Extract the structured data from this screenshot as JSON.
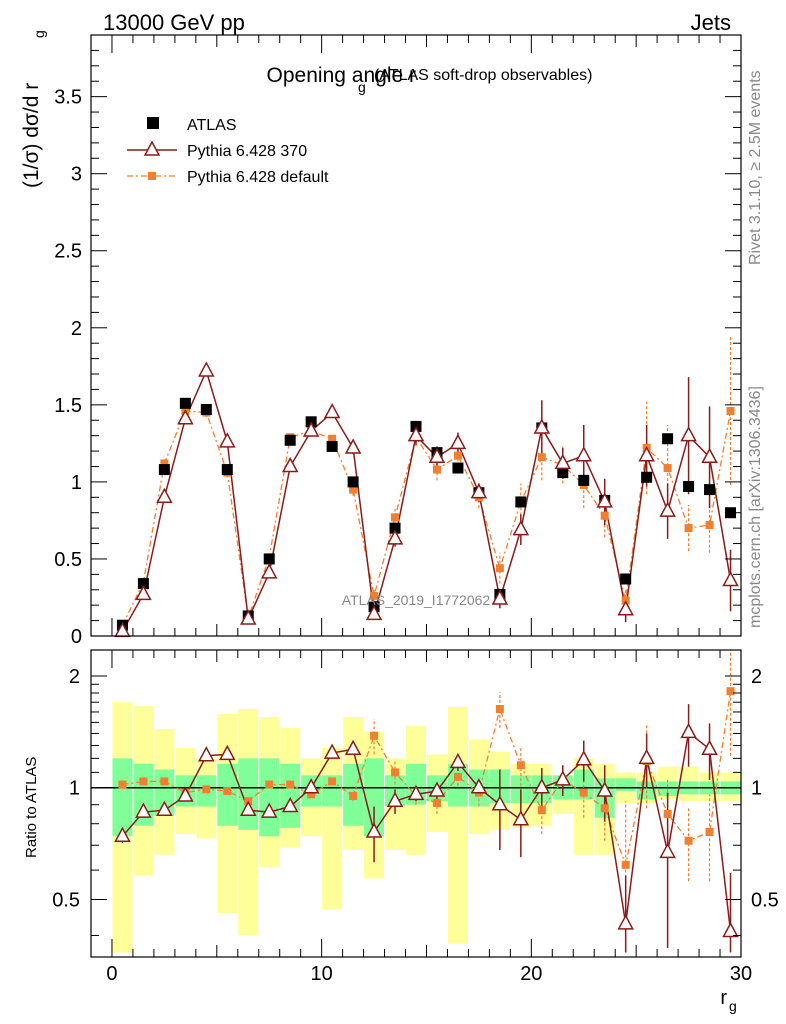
{
  "header": {
    "left": "13000 GeV pp",
    "right": "Jets",
    "side_rivet": "Rivet 3.1.10, ≥ 2.5M events",
    "side_mcplots": "mcplots.cern.ch [arXiv:1306.3436]",
    "watermark": "ATLAS_2019_I1772062"
  },
  "colors": {
    "data": "#000000",
    "mc1": "#8b1a1a",
    "mc2": "#f08030",
    "band_inner": "#80ff99",
    "band_outer": "#ffff99"
  },
  "chart_data": [
    {
      "type": "scatter",
      "title_main": "Opening angle r",
      "title_sub": "g",
      "title_extra": "(ATLAS soft-drop observables)",
      "ylabel_main": "(1/σ) dσ/d r",
      "ylabel_sub": "g",
      "xlim": [
        -1,
        30
      ],
      "ylim": [
        0,
        3.9
      ],
      "yticks": [
        0,
        0.5,
        1,
        1.5,
        2,
        2.5,
        3,
        3.5
      ],
      "ytick_labels": [
        "0",
        "0.5",
        "1",
        "1.5",
        "2",
        "2.5",
        "3",
        "3.5"
      ],
      "x": [
        0.5,
        1.5,
        2.5,
        3.5,
        4.5,
        5.5,
        6.5,
        7.5,
        8.5,
        9.5,
        10.5,
        11.5,
        12.5,
        13.5,
        14.5,
        15.5,
        16.5,
        17.5,
        18.5,
        19.5,
        20.5,
        21.5,
        22.5,
        23.5,
        24.5,
        25.5,
        26.5,
        27.5,
        28.5,
        29.5
      ],
      "series": [
        {
          "name": "ATLAS",
          "values": [
            0.07,
            0.34,
            1.08,
            1.51,
            1.47,
            1.08,
            0.13,
            0.5,
            1.27,
            1.39,
            1.23,
            1.0,
            0.19,
            0.7,
            1.36,
            1.19,
            1.09,
            0.93,
            0.27,
            0.87,
            1.35,
            1.06,
            1.01,
            0.88,
            0.37,
            1.03,
            1.28,
            0.97,
            0.95,
            0.8
          ]
        },
        {
          "name": "Pythia 6.428 370",
          "values": [
            0.03,
            0.27,
            0.9,
            1.41,
            1.72,
            1.26,
            0.11,
            0.41,
            1.1,
            1.33,
            1.45,
            1.22,
            0.14,
            0.63,
            1.3,
            1.16,
            1.25,
            0.93,
            0.24,
            0.69,
            1.35,
            1.12,
            1.17,
            0.87,
            0.17,
            1.17,
            0.81,
            1.3,
            1.16,
            0.36
          ],
          "errors": [
            0.01,
            0.02,
            0.03,
            0.03,
            0.03,
            0.03,
            0.01,
            0.02,
            0.03,
            0.03,
            0.03,
            0.04,
            0.03,
            0.05,
            0.06,
            0.07,
            0.07,
            0.06,
            0.06,
            0.1,
            0.18,
            0.1,
            0.2,
            0.15,
            0.08,
            0.2,
            0.18,
            0.38,
            0.33,
            0.2
          ]
        },
        {
          "name": "Pythia 6.428 default",
          "values": [
            0.07,
            0.35,
            1.12,
            1.46,
            1.45,
            1.06,
            0.12,
            0.51,
            1.29,
            1.33,
            1.28,
            0.95,
            0.26,
            0.77,
            1.29,
            1.08,
            1.17,
            0.9,
            0.44,
            0.87,
            1.16,
            1.11,
            0.98,
            0.78,
            0.23,
            1.22,
            1.09,
            0.7,
            0.72,
            1.46
          ],
          "errors": [
            0.01,
            0.02,
            0.03,
            0.03,
            0.03,
            0.03,
            0.01,
            0.02,
            0.03,
            0.03,
            0.03,
            0.04,
            0.04,
            0.06,
            0.06,
            0.07,
            0.07,
            0.07,
            0.1,
            0.12,
            0.15,
            0.12,
            0.15,
            0.14,
            0.08,
            0.3,
            0.28,
            0.15,
            0.18,
            0.48
          ]
        }
      ]
    },
    {
      "type": "scatter",
      "ylabel": "Ratio to ATLAS",
      "xlabel_main": "r",
      "xlabel_sub": "g",
      "xlim": [
        -1,
        30
      ],
      "ylim": [
        0.35,
        2.35
      ],
      "yticks": [
        0.5,
        1,
        2
      ],
      "ytick_labels": [
        "0.5",
        "1",
        "2"
      ],
      "xticks": [
        0,
        10,
        20,
        30
      ],
      "xtick_labels": [
        "0",
        "10",
        "20",
        "30"
      ],
      "bands": {
        "inner_low": [
          0.74,
          0.79,
          0.84,
          0.89,
          0.89,
          0.79,
          0.77,
          0.74,
          0.78,
          0.89,
          0.89,
          0.79,
          0.74,
          0.89,
          0.9,
          0.92,
          0.89,
          0.89,
          0.91,
          0.91,
          0.91,
          0.93,
          0.93,
          0.83,
          0.98,
          0.93,
          0.95,
          0.96,
          0.96,
          0.96
        ],
        "inner_high": [
          1.2,
          1.16,
          1.12,
          1.08,
          1.08,
          1.16,
          1.2,
          1.2,
          1.16,
          1.08,
          1.08,
          1.16,
          1.2,
          1.08,
          1.16,
          1.08,
          1.16,
          1.12,
          1.12,
          1.08,
          1.08,
          1.08,
          1.12,
          1.06,
          1.06,
          1.04,
          1.04,
          1.04,
          1.04,
          1.04
        ],
        "outer_low": [
          0.36,
          0.58,
          0.66,
          0.75,
          0.73,
          0.46,
          0.4,
          0.61,
          0.69,
          0.74,
          0.47,
          0.68,
          0.57,
          0.68,
          0.66,
          0.76,
          0.38,
          0.75,
          0.77,
          0.78,
          0.79,
          0.85,
          0.66,
          0.66,
          0.91,
          0.91,
          0.93,
          0.92,
          0.92,
          0.92
        ],
        "outer_high": [
          1.7,
          1.66,
          1.44,
          1.28,
          1.2,
          1.58,
          1.63,
          1.55,
          1.45,
          1.2,
          1.28,
          1.55,
          1.42,
          1.2,
          1.47,
          1.23,
          1.65,
          1.35,
          1.25,
          1.16,
          1.16,
          1.08,
          1.2,
          1.16,
          1.1,
          1.1,
          1.14,
          1.14,
          1.1,
          1.1
        ]
      },
      "series": [
        {
          "name": "Pythia 6.428 370",
          "values": [
            0.74,
            0.86,
            0.87,
            0.95,
            1.22,
            1.23,
            0.87,
            0.86,
            0.89,
            1.0,
            1.24,
            1.27,
            0.76,
            0.92,
            0.96,
            0.98,
            1.17,
            1.0,
            0.9,
            0.82,
            1.0,
            1.05,
            1.19,
            0.98,
            0.43,
            1.2,
            0.67,
            1.41,
            1.27,
            0.41
          ],
          "errors": [
            0.03,
            0.02,
            0.02,
            0.02,
            0.02,
            0.02,
            0.02,
            0.02,
            0.02,
            0.02,
            0.02,
            0.03,
            0.13,
            0.07,
            0.04,
            0.05,
            0.06,
            0.05,
            0.22,
            0.17,
            0.13,
            0.1,
            0.15,
            0.17,
            0.15,
            0.2,
            0.3,
            0.27,
            0.22,
            0.18
          ]
        },
        {
          "name": "Pythia 6.428 default",
          "values": [
            1.02,
            1.04,
            1.04,
            0.97,
            0.99,
            0.98,
            0.92,
            1.02,
            1.02,
            0.96,
            1.04,
            0.95,
            1.38,
            1.1,
            0.95,
            0.91,
            1.07,
            0.97,
            1.63,
            1.15,
            0.87,
            1.05,
            0.97,
            0.88,
            0.62,
            1.18,
            0.85,
            0.72,
            0.76,
            1.82
          ],
          "errors": [
            0.03,
            0.02,
            0.02,
            0.02,
            0.02,
            0.02,
            0.02,
            0.02,
            0.02,
            0.02,
            0.02,
            0.03,
            0.15,
            0.08,
            0.05,
            0.06,
            0.06,
            0.08,
            0.18,
            0.14,
            0.12,
            0.1,
            0.14,
            0.16,
            0.3,
            0.3,
            0.2,
            0.16,
            0.2,
            0.6
          ]
        }
      ]
    }
  ]
}
